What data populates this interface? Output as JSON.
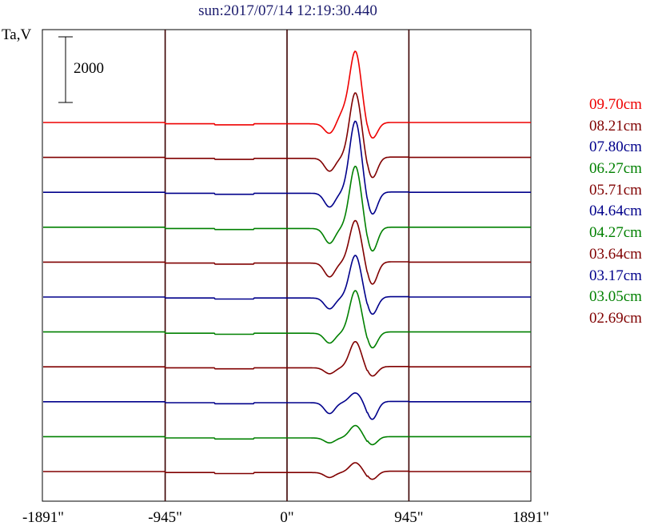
{
  "chart_data": {
    "type": "line",
    "title": "sun:2017/07/14 12:19:30.440",
    "ylabel": "Ta,V",
    "scale_bar": "2000",
    "x_ticks": [
      -1891,
      -945,
      0,
      945,
      1891
    ],
    "x_tick_labels": [
      "-1891\"",
      "-945\"",
      "0\"",
      "945\"",
      "1891\""
    ],
    "xlim": [
      -1891,
      1891
    ],
    "grid_x": [
      -945,
      0,
      945
    ],
    "series": [
      {
        "name": "09.70cm",
        "color": "#ee0000",
        "peak": 2200,
        "dip": -500,
        "bump": 280
      },
      {
        "name": "08.21cm",
        "color": "#800000",
        "peak": 2000,
        "dip": -650,
        "bump": 0
      },
      {
        "name": "07.80cm",
        "color": "#00008b",
        "peak": 2200,
        "dip": -700,
        "bump": 0
      },
      {
        "name": "06.27cm",
        "color": "#008000",
        "peak": 1900,
        "dip": -750,
        "bump": 0
      },
      {
        "name": "05.71cm",
        "color": "#800000",
        "peak": 1300,
        "dip": -700,
        "bump": 0
      },
      {
        "name": "04.64cm",
        "color": "#00008b",
        "peak": 1300,
        "dip": -550,
        "bump": 0
      },
      {
        "name": "04.27cm",
        "color": "#008000",
        "peak": 1300,
        "dip": -500,
        "bump": 0
      },
      {
        "name": "03.64cm",
        "color": "#800000",
        "peak": 800,
        "dip": -300,
        "bump": 0
      },
      {
        "name": "03.17cm",
        "color": "#00008b",
        "peak": 300,
        "dip": -550,
        "bump": 0
      },
      {
        "name": "03.05cm",
        "color": "#008000",
        "peak": 380,
        "dip": -250,
        "bump": 0
      },
      {
        "name": "02.69cm",
        "color": "#800000",
        "peak": 300,
        "dip": -250,
        "bump": 0
      }
    ]
  }
}
